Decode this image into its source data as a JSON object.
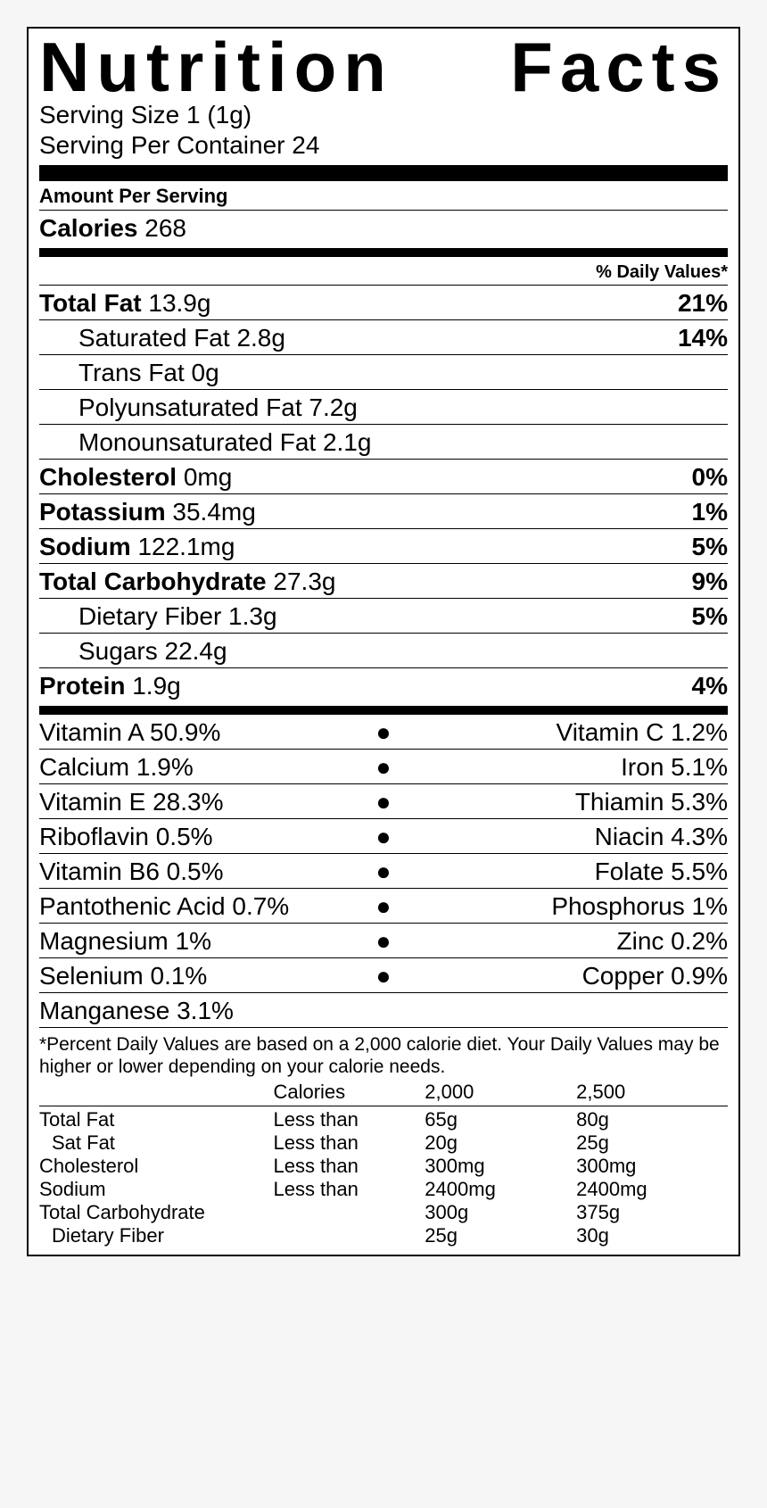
{
  "title": "Nutrition Facts",
  "serving_size_label": "Serving Size",
  "serving_size_value": "1  (1g)",
  "servings_per_label": "Serving Per Container",
  "servings_per_value": "24",
  "amount_per_serving": "Amount Per Serving",
  "calories_label": "Calories",
  "calories_value": "268",
  "dv_header": "% Daily Values*",
  "nutrients": {
    "total_fat": {
      "label": "Total Fat",
      "value": "13.9g",
      "dv": "21%",
      "bold": true,
      "indent": false
    },
    "sat_fat": {
      "label": "Saturated Fat",
      "value": "2.8g",
      "dv": "14%",
      "bold": false,
      "indent": true
    },
    "trans_fat": {
      "label": "Trans Fat",
      "value": "0g",
      "dv": "",
      "bold": false,
      "indent": true
    },
    "poly_fat": {
      "label": "Polyunsaturated Fat",
      "value": "7.2g",
      "dv": "",
      "bold": false,
      "indent": true
    },
    "mono_fat": {
      "label": "Monounsaturated Fat",
      "value": "2.1g",
      "dv": "",
      "bold": false,
      "indent": true
    },
    "cholesterol": {
      "label": "Cholesterol",
      "value": "0mg",
      "dv": "0%",
      "bold": true,
      "indent": false
    },
    "potassium": {
      "label": "Potassium",
      "value": "35.4mg",
      "dv": "1%",
      "bold": true,
      "indent": false
    },
    "sodium": {
      "label": "Sodium",
      "value": "122.1mg",
      "dv": "5%",
      "bold": true,
      "indent": false
    },
    "total_carb": {
      "label": "Total Carbohydrate",
      "value": "27.3g",
      "dv": "9%",
      "bold": true,
      "indent": false
    },
    "fiber": {
      "label": "Dietary Fiber",
      "value": "1.3g",
      "dv": "5%",
      "bold": false,
      "indent": true
    },
    "sugars": {
      "label": "Sugars",
      "value": "22.4g",
      "dv": "",
      "bold": false,
      "indent": true
    },
    "protein": {
      "label": "Protein",
      "value": "1.9g",
      "dv": "4%",
      "bold": true,
      "indent": false
    }
  },
  "vitamins": [
    {
      "left": "Vitamin A 50.9%",
      "right": "Vitamin C 1.2%"
    },
    {
      "left": "Calcium 1.9%",
      "right": "Iron 5.1%"
    },
    {
      "left": "Vitamin E 28.3%",
      "right": "Thiamin 5.3%"
    },
    {
      "left": "Riboflavin 0.5%",
      "right": "Niacin 4.3%"
    },
    {
      "left": "Vitamin B6 0.5%",
      "right": "Folate 5.5%"
    },
    {
      "left": "Pantothenic Acid 0.7%",
      "right": "Phosphorus 1%"
    },
    {
      "left": "Magnesium 1%",
      "right": "Zinc 0.2%"
    },
    {
      "left": "Selenium 0.1%",
      "right": "Copper 0.9%"
    },
    {
      "left": "Manganese 3.1%",
      "right": ""
    }
  ],
  "footnote": "*Percent Daily Values are based on a 2,000 calorie diet. Your Daily Values may be higher or lower depending on your calorie needs.",
  "ref_table": {
    "headers": {
      "c1": "",
      "c2": "Calories",
      "c3": "2,000",
      "c4": "2,500"
    },
    "rows": [
      {
        "c1": "Total Fat",
        "c2": "Less than",
        "c3": "65g",
        "c4": "80g",
        "indent": false
      },
      {
        "c1": "Sat Fat",
        "c2": "Less than",
        "c3": "20g",
        "c4": "25g",
        "indent": true
      },
      {
        "c1": "Cholesterol",
        "c2": "Less than",
        "c3": "300mg",
        "c4": "300mg",
        "indent": false
      },
      {
        "c1": "Sodium",
        "c2": "Less than",
        "c3": "2400mg",
        "c4": "2400mg",
        "indent": false
      },
      {
        "c1": "Total Carbohydrate",
        "c2": "",
        "c3": "300g",
        "c4": "375g",
        "indent": false
      },
      {
        "c1": "Dietary Fiber",
        "c2": "",
        "c3": "25g",
        "c4": "30g",
        "indent": true
      }
    ]
  },
  "colors": {
    "border": "#000000",
    "background": "#ffffff",
    "page_bg": "#f6f6f6"
  }
}
